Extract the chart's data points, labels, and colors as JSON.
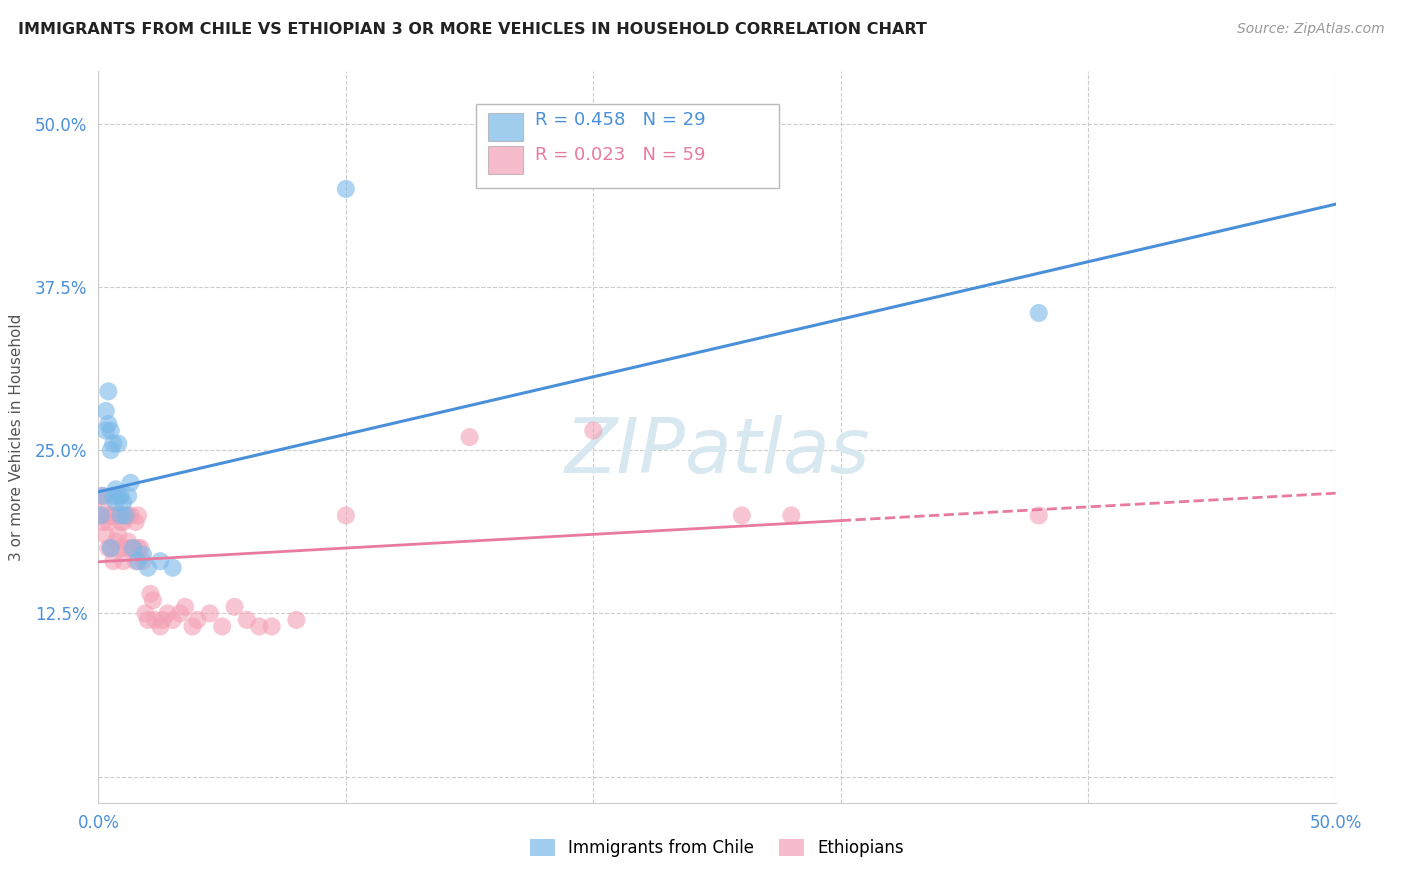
{
  "title": "IMMIGRANTS FROM CHILE VS ETHIOPIAN 3 OR MORE VEHICLES IN HOUSEHOLD CORRELATION CHART",
  "source": "Source: ZipAtlas.com",
  "ylabel": "3 or more Vehicles in Household",
  "xlim": [
    0.0,
    0.5
  ],
  "ylim": [
    -0.02,
    0.54
  ],
  "chile_R": 0.458,
  "chile_N": 29,
  "ethiopian_R": 0.023,
  "ethiopian_N": 59,
  "chile_color": "#7ab8e8",
  "ethiopian_color": "#f4a0b5",
  "chile_line_color": "#4a90d9",
  "ethiopian_line_color": "#e87aa0",
  "background_color": "#ffffff",
  "grid_color": "#cccccc",
  "watermark_color": "#d8e8f0",
  "chile_x": [
    0.001,
    0.002,
    0.003,
    0.003,
    0.004,
    0.004,
    0.005,
    0.005,
    0.006,
    0.006,
    0.007,
    0.007,
    0.008,
    0.008,
    0.009,
    0.009,
    0.01,
    0.011,
    0.012,
    0.013,
    0.014,
    0.016,
    0.018,
    0.02,
    0.025,
    0.03,
    0.1,
    0.38,
    0.005
  ],
  "chile_y": [
    0.2,
    0.215,
    0.28,
    0.265,
    0.27,
    0.295,
    0.265,
    0.25,
    0.255,
    0.215,
    0.22,
    0.21,
    0.215,
    0.255,
    0.215,
    0.2,
    0.21,
    0.2,
    0.215,
    0.225,
    0.175,
    0.165,
    0.17,
    0.16,
    0.165,
    0.16,
    0.45,
    0.355,
    0.175
  ],
  "ethiopian_x": [
    0.001,
    0.001,
    0.002,
    0.002,
    0.003,
    0.003,
    0.004,
    0.004,
    0.005,
    0.005,
    0.006,
    0.006,
    0.007,
    0.007,
    0.008,
    0.008,
    0.009,
    0.009,
    0.01,
    0.01,
    0.011,
    0.011,
    0.012,
    0.012,
    0.013,
    0.013,
    0.014,
    0.015,
    0.015,
    0.016,
    0.016,
    0.017,
    0.018,
    0.019,
    0.02,
    0.021,
    0.022,
    0.023,
    0.025,
    0.026,
    0.028,
    0.03,
    0.033,
    0.035,
    0.038,
    0.04,
    0.045,
    0.05,
    0.055,
    0.06,
    0.065,
    0.07,
    0.08,
    0.1,
    0.15,
    0.2,
    0.26,
    0.28,
    0.38
  ],
  "ethiopian_y": [
    0.2,
    0.215,
    0.195,
    0.21,
    0.185,
    0.2,
    0.175,
    0.195,
    0.175,
    0.2,
    0.165,
    0.2,
    0.18,
    0.2,
    0.185,
    0.2,
    0.175,
    0.195,
    0.165,
    0.195,
    0.175,
    0.2,
    0.18,
    0.2,
    0.175,
    0.2,
    0.175,
    0.165,
    0.195,
    0.175,
    0.2,
    0.175,
    0.165,
    0.125,
    0.12,
    0.14,
    0.135,
    0.12,
    0.115,
    0.12,
    0.125,
    0.12,
    0.125,
    0.13,
    0.115,
    0.12,
    0.125,
    0.115,
    0.13,
    0.12,
    0.115,
    0.115,
    0.12,
    0.2,
    0.26,
    0.265,
    0.2,
    0.2,
    0.2
  ]
}
